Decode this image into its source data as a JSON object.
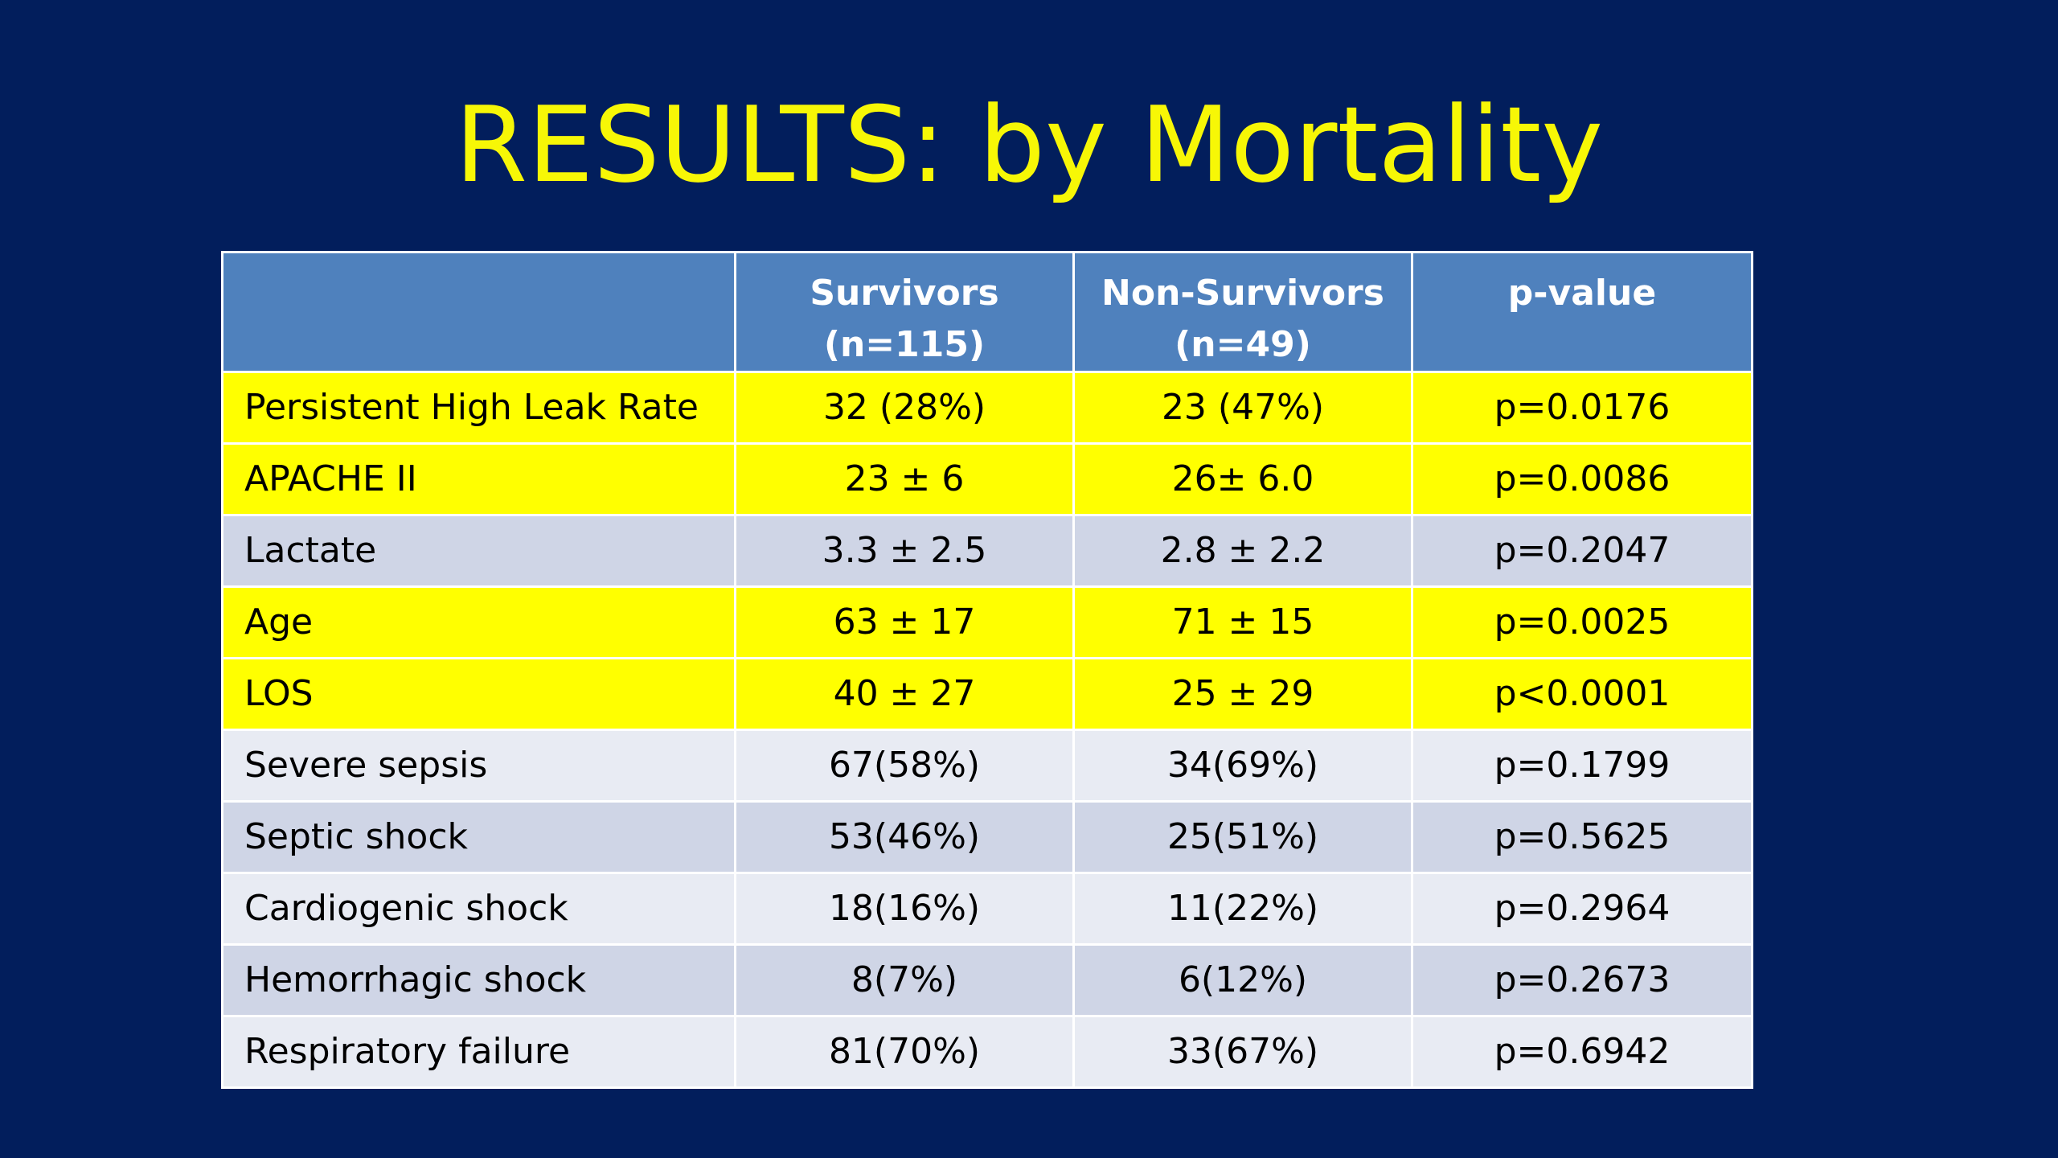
{
  "title": "RESULTS: by Mortality",
  "colors": {
    "background": "#021e5c",
    "title": "#f7f706",
    "header": "#4f81bd",
    "highlight": "#ffff00",
    "row_band_dark": "#cfd5e6",
    "row_band_light": "#e8ebf3"
  },
  "table": {
    "headers": [
      {
        "line1": "",
        "line2": ""
      },
      {
        "line1": "Survivors",
        "line2": "(n=115)"
      },
      {
        "line1": "Non-Survivors",
        "line2": "(n=49)"
      },
      {
        "line1": "p-value",
        "line2": ""
      }
    ],
    "rows": [
      {
        "label": "Persistent High Leak Rate",
        "survivors": "32 (28%)",
        "non_survivors": "23 (47%)",
        "p": "p=0.0176",
        "highlighted": true
      },
      {
        "label": "APACHE II",
        "survivors": "23 ± 6",
        "non_survivors": "26± 6.0",
        "p": "p=0.0086",
        "highlighted": true
      },
      {
        "label": "Lactate",
        "survivors": "3.3 ± 2.5",
        "non_survivors": "2.8 ± 2.2",
        "p": "p=0.2047",
        "highlighted": false
      },
      {
        "label": "Age",
        "survivors": "63 ± 17",
        "non_survivors": "71 ± 15",
        "p": "p=0.0025",
        "highlighted": true
      },
      {
        "label": "LOS",
        "survivors": "40 ± 27",
        "non_survivors": "25 ± 29",
        "p": "p<0.0001",
        "highlighted": true
      },
      {
        "label": "Severe sepsis",
        "survivors": "67(58%)",
        "non_survivors": "34(69%)",
        "p": "p=0.1799",
        "highlighted": false
      },
      {
        "label": "Septic shock",
        "survivors": "53(46%)",
        "non_survivors": "25(51%)",
        "p": "p=0.5625",
        "highlighted": false
      },
      {
        "label": "Cardiogenic shock",
        "survivors": "18(16%)",
        "non_survivors": "11(22%)",
        "p": "p=0.2964",
        "highlighted": false
      },
      {
        "label": "Hemorrhagic shock",
        "survivors": "8(7%)",
        "non_survivors": "6(12%)",
        "p": "p=0.2673",
        "highlighted": false
      },
      {
        "label": "Respiratory failure",
        "survivors": "81(70%)",
        "non_survivors": "33(67%)",
        "p": "p=0.6942",
        "highlighted": false
      }
    ]
  }
}
